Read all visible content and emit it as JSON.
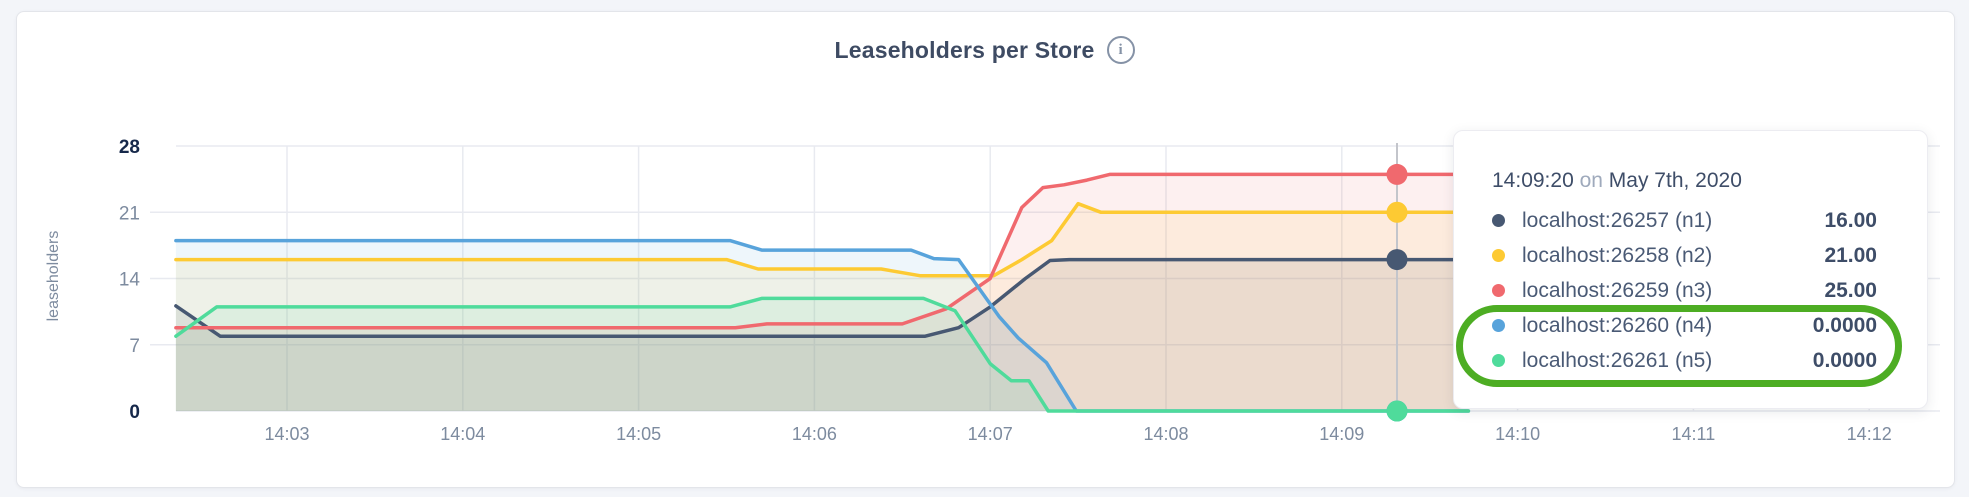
{
  "page": {
    "background": "#f3f5f9"
  },
  "header": {
    "title": "Leaseholders per Store",
    "info_icon_glyph": "i"
  },
  "chart_data": {
    "type": "area",
    "title": "Leaseholders per Store",
    "xlabel": "",
    "ylabel": "leaseholders",
    "ylim": [
      0,
      28
    ],
    "grid": true,
    "y_ticks": [
      {
        "v": 0,
        "label": "0",
        "bold": true
      },
      {
        "v": 7,
        "label": "7",
        "bold": false
      },
      {
        "v": 14,
        "label": "14",
        "bold": false
      },
      {
        "v": 21,
        "label": "21",
        "bold": false
      },
      {
        "v": 28,
        "label": "28",
        "bold": true
      }
    ],
    "x_ticks": [
      {
        "t": 3,
        "label": "14:03"
      },
      {
        "t": 4,
        "label": "14:04"
      },
      {
        "t": 5,
        "label": "14:05"
      },
      {
        "t": 6,
        "label": "14:06"
      },
      {
        "t": 7,
        "label": "14:07"
      },
      {
        "t": 8,
        "label": "14:08"
      },
      {
        "t": 9,
        "label": "14:09"
      },
      {
        "t": 10,
        "label": "14:10"
      },
      {
        "t": 11,
        "label": "14:11"
      },
      {
        "t": 12,
        "label": "14:12"
      }
    ],
    "x_unit": "minutes after 14:00",
    "series": [
      {
        "name": "localhost:26257 (n1)",
        "color": "#475872",
        "fill_opacity": 0.12,
        "points": [
          [
            2.368,
            11.1
          ],
          [
            2.62,
            7.9
          ],
          [
            6.63,
            7.9
          ],
          [
            6.82,
            8.8
          ],
          [
            7.0,
            11.0
          ],
          [
            7.2,
            14.0
          ],
          [
            7.34,
            15.9
          ],
          [
            7.45,
            16
          ],
          [
            9.72,
            16
          ]
        ]
      },
      {
        "name": "localhost:26258 (n2)",
        "color": "#fdca33",
        "fill_opacity": 0.1,
        "points": [
          [
            2.368,
            16
          ],
          [
            5.5,
            16
          ],
          [
            5.68,
            15
          ],
          [
            6.38,
            15
          ],
          [
            6.6,
            14.3
          ],
          [
            7.02,
            14.3
          ],
          [
            7.18,
            16
          ],
          [
            7.35,
            18
          ],
          [
            7.5,
            21.9
          ],
          [
            7.63,
            21
          ],
          [
            9.72,
            21
          ]
        ]
      },
      {
        "name": "localhost:26259 (n3)",
        "color": "#f0696e",
        "fill_opacity": 0.1,
        "points": [
          [
            2.368,
            8.8
          ],
          [
            5.55,
            8.8
          ],
          [
            5.73,
            9.2
          ],
          [
            6.5,
            9.2
          ],
          [
            6.75,
            10.8
          ],
          [
            7.0,
            14.0
          ],
          [
            7.18,
            21.5
          ],
          [
            7.3,
            23.6
          ],
          [
            7.42,
            23.9
          ],
          [
            7.55,
            24.4
          ],
          [
            7.68,
            25
          ],
          [
            9.72,
            25
          ]
        ]
      },
      {
        "name": "localhost:26260 (n4)",
        "color": "#58a3db",
        "fill_opacity": 0.1,
        "points": [
          [
            2.368,
            18
          ],
          [
            5.52,
            18
          ],
          [
            5.7,
            17
          ],
          [
            6.55,
            17
          ],
          [
            6.68,
            16.1
          ],
          [
            6.82,
            16
          ],
          [
            7.05,
            10.0
          ],
          [
            7.16,
            7.7
          ],
          [
            7.32,
            5.1
          ],
          [
            7.49,
            0
          ],
          [
            9.72,
            0
          ]
        ]
      },
      {
        "name": "localhost:26261 (n5)",
        "color": "#4fdb9b",
        "fill_opacity": 0.1,
        "points": [
          [
            2.368,
            7.9
          ],
          [
            2.6,
            11
          ],
          [
            5.52,
            11
          ],
          [
            5.7,
            11.9
          ],
          [
            6.62,
            11.9
          ],
          [
            6.8,
            10.6
          ],
          [
            7.0,
            5.0
          ],
          [
            7.12,
            3.2
          ],
          [
            7.22,
            3.2
          ],
          [
            7.33,
            0
          ],
          [
            9.72,
            0
          ]
        ]
      }
    ],
    "hover": {
      "t": 9.314,
      "values": [
        16,
        21,
        25,
        0,
        0
      ],
      "marker_order": [
        2,
        1,
        0,
        3,
        4
      ]
    },
    "colors": {
      "grid": "#e8eaf0",
      "crosshair": "#c3c5cb",
      "tick_label": "#7d8b9f",
      "tick_label_bold": "#16284a",
      "axis_title": "#7d8b9f"
    }
  },
  "tooltip": {
    "time": "14:09:20",
    "on_word": "on",
    "date": "May 7th, 2020",
    "rows": [
      {
        "label": "localhost:26257 (n1)",
        "value": "16.00",
        "color": "#475872"
      },
      {
        "label": "localhost:26258 (n2)",
        "value": "21.00",
        "color": "#fdca33"
      },
      {
        "label": "localhost:26259 (n3)",
        "value": "25.00",
        "color": "#f0696e"
      },
      {
        "label": "localhost:26260 (n4)",
        "value": "0.0000",
        "color": "#58a3db"
      },
      {
        "label": "localhost:26261 (n5)",
        "value": "0.0000",
        "color": "#4fdb9b"
      }
    ],
    "highlighted_rows": [
      3,
      4
    ],
    "annotation_color": "#4dad23"
  }
}
